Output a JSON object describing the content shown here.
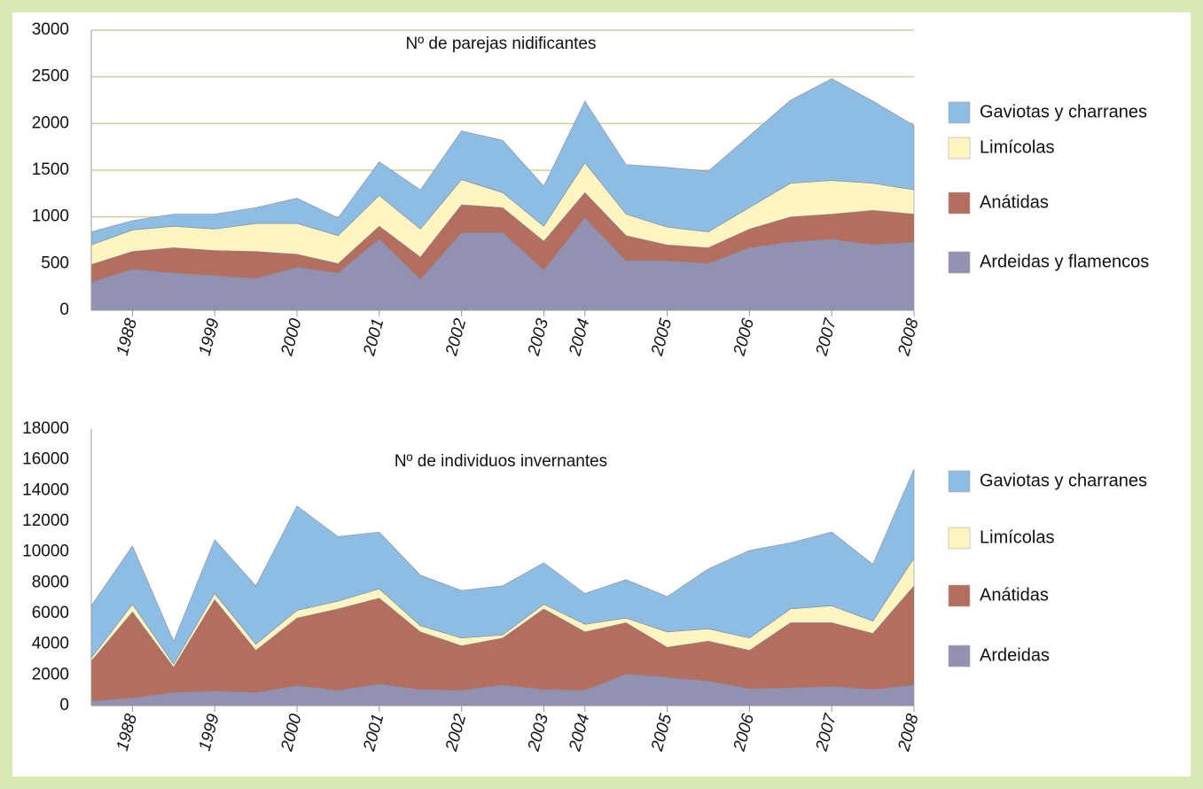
{
  "chart_data": [
    {
      "type": "stacked-area",
      "title": "Nº de parejas nidificantes",
      "categories": [
        null,
        "1988",
        null,
        "1999",
        null,
        "2000",
        null,
        "2001",
        null,
        "2002",
        null,
        "2003",
        "2004",
        null,
        "2005",
        null,
        "2006",
        null,
        "2007",
        null,
        "2008"
      ],
      "series": [
        {
          "name": "Gaviotas y charranes",
          "color": "#8ebde3",
          "values": [
            140,
            100,
            130,
            160,
            170,
            270,
            190,
            360,
            420,
            520,
            560,
            430,
            660,
            530,
            640,
            650,
            770,
            890,
            1090,
            880,
            690
          ]
        },
        {
          "name": "Limícolas",
          "color": "#fff5c0",
          "values": [
            210,
            230,
            230,
            230,
            300,
            330,
            300,
            330,
            300,
            270,
            160,
            160,
            320,
            230,
            190,
            170,
            230,
            360,
            360,
            290,
            260
          ]
        },
        {
          "name": "Anátidas",
          "color": "#b46e5e",
          "values": [
            190,
            190,
            270,
            270,
            290,
            140,
            100,
            140,
            240,
            300,
            270,
            310,
            270,
            270,
            170,
            170,
            200,
            270,
            270,
            370,
            300
          ]
        },
        {
          "name": "Ardeidas y flamencos",
          "color": "#9391b1",
          "values": [
            300,
            440,
            400,
            370,
            340,
            460,
            400,
            760,
            330,
            830,
            830,
            430,
            990,
            530,
            530,
            500,
            670,
            730,
            760,
            700,
            730
          ]
        }
      ],
      "ylim": [
        0,
        3000
      ],
      "yticks": [
        0,
        500,
        1000,
        1500,
        2000,
        2500,
        3000
      ],
      "grid": true
    },
    {
      "type": "stacked-area",
      "title": "Nº de individuos invernantes",
      "categories": [
        null,
        "1988",
        null,
        "1999",
        null,
        "2000",
        null,
        "2001",
        null,
        "2002",
        null,
        "2003",
        "2004",
        null,
        "2005",
        null,
        "2006",
        null,
        "2007",
        null,
        "2008"
      ],
      "series": [
        {
          "name": "Gaviotas y charranes",
          "color": "#8ebde3",
          "values": [
            3400,
            3800,
            1500,
            3500,
            3800,
            6800,
            4200,
            3700,
            3300,
            3100,
            3200,
            2700,
            2000,
            2500,
            2300,
            3900,
            5700,
            4300,
            4800,
            3700,
            5800
          ]
        },
        {
          "name": "Limícolas",
          "color": "#fff5c0",
          "values": [
            200,
            500,
            200,
            400,
            400,
            500,
            500,
            600,
            400,
            500,
            200,
            300,
            500,
            300,
            1000,
            800,
            800,
            900,
            1100,
            800,
            1800
          ]
        },
        {
          "name": "Anátidas",
          "color": "#b46e5e",
          "values": [
            2600,
            5600,
            1650,
            5950,
            2750,
            4400,
            5300,
            5600,
            3750,
            2900,
            3050,
            5250,
            3800,
            3350,
            1950,
            2600,
            2500,
            4250,
            4150,
            3650,
            6450
          ]
        },
        {
          "name": "Ardeidas",
          "color": "#9391b1",
          "values": [
            300,
            500,
            850,
            950,
            850,
            1300,
            1000,
            1400,
            1050,
            1000,
            1350,
            1050,
            1000,
            2050,
            1850,
            1600,
            1100,
            1150,
            1250,
            1050,
            1350
          ]
        }
      ],
      "ylim": [
        0,
        18000
      ],
      "yticks": [
        0,
        2000,
        4000,
        6000,
        8000,
        10000,
        12000,
        14000,
        16000,
        18000
      ],
      "grid": false
    }
  ]
}
